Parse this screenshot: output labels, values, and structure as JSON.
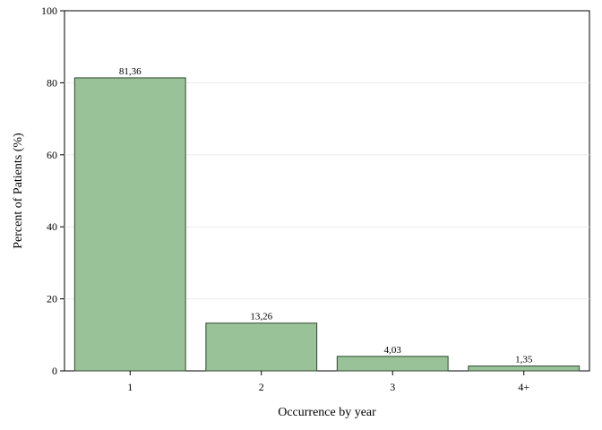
{
  "chart_data": {
    "type": "bar",
    "title": "",
    "xlabel": "Occurrence by year",
    "ylabel": "Percent of Patients (%)",
    "categories": [
      "1",
      "2",
      "3",
      "4+"
    ],
    "values": [
      81.36,
      13.26,
      4.03,
      1.35
    ],
    "value_labels": [
      "81,36",
      "13,26",
      "4,03",
      "1,35"
    ],
    "ylim": [
      0,
      100
    ],
    "yticks": [
      0,
      20,
      40,
      60,
      80,
      100
    ],
    "ytick_labels": [
      "0",
      "20",
      "40",
      "60",
      "80",
      "100"
    ],
    "grid": true,
    "legend": "none"
  },
  "colors": {
    "bar_fill": "#99c298",
    "bar_stroke": "#2f4a2f",
    "grid": "#ececec",
    "axis": "#000000",
    "frame": "#000000"
  }
}
